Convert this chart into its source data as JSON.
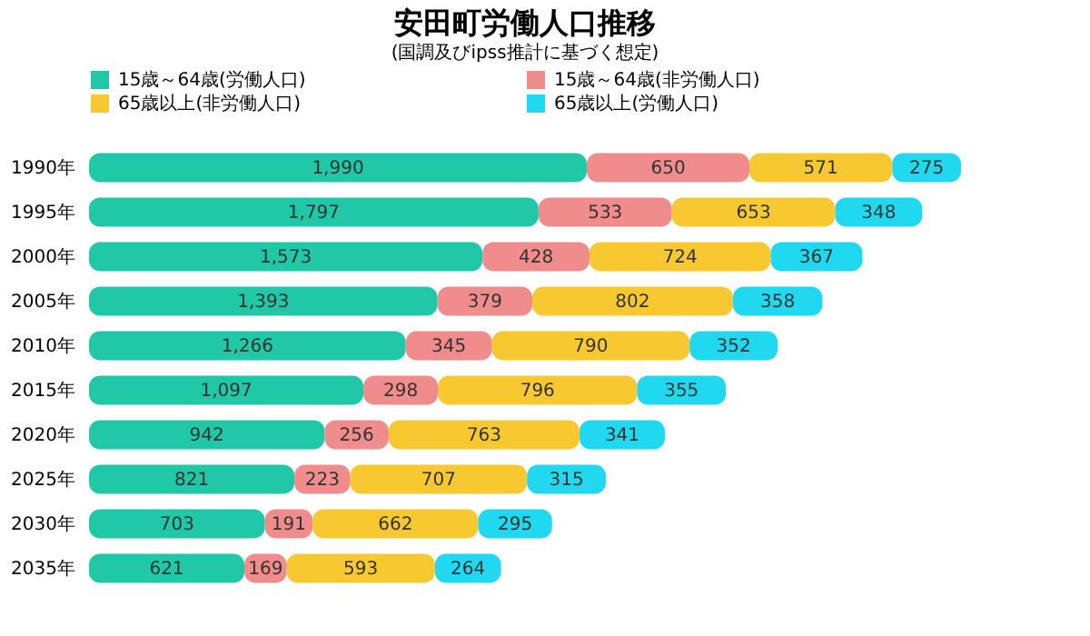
{
  "chart_data": {
    "type": "bar",
    "orientation": "horizontal",
    "stacked": true,
    "data_labels": true,
    "legend": "top",
    "grid": false,
    "title": "安田町労働人口推移",
    "subtitle": "(国調及びipss推計に基づく想定)",
    "categories": [
      "1990年",
      "1995年",
      "2000年",
      "2005年",
      "2010年",
      "2015年",
      "2020年",
      "2025年",
      "2030年",
      "2035年"
    ],
    "series": [
      {
        "name": "15歳～64歳(労働人口)",
        "color": "#20c8a8",
        "values": [
          1990,
          1797,
          1573,
          1393,
          1266,
          1097,
          942,
          821,
          703,
          621
        ],
        "value_labels": [
          "1,990",
          "1,797",
          "1,573",
          "1,393",
          "1,266",
          "1,097",
          "942",
          "821",
          "703",
          "621"
        ]
      },
      {
        "name": "15歳～64歳(非労働人口)",
        "color": "#f08c8c",
        "values": [
          650,
          533,
          428,
          379,
          345,
          298,
          256,
          223,
          191,
          169
        ]
      },
      {
        "name": "65歳以上(非労働人口)",
        "color": "#f8c830",
        "values": [
          571,
          653,
          724,
          802,
          790,
          796,
          763,
          707,
          662,
          593
        ]
      },
      {
        "name": "65歳以上(労働人口)",
        "color": "#20d8f0",
        "values": [
          275,
          348,
          367,
          358,
          352,
          355,
          341,
          315,
          295,
          264
        ]
      }
    ]
  }
}
